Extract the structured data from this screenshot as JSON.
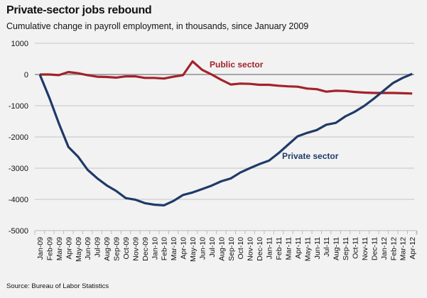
{
  "chart_data": {
    "type": "line",
    "title": "Private-sector jobs rebound",
    "subtitle": "Cumulative change in payroll employment, in thousands, since January 2009",
    "source": "Source: Bureau of Labor Statistics",
    "xlabel": "",
    "ylabel": "",
    "ylim": [
      -5000,
      1000
    ],
    "yticks": [
      1000,
      0,
      -1000,
      -2000,
      -3000,
      -4000,
      -5000
    ],
    "grid": true,
    "categories": [
      "Jan-09",
      "Feb-09",
      "Mar-09",
      "Apr-09",
      "May-09",
      "Jun-09",
      "Jul-09",
      "Aug-09",
      "Sep-09",
      "Oct-09",
      "Nov-09",
      "Dec-09",
      "Jan-10",
      "Feb-10",
      "Mar-10",
      "Apr-10",
      "May-10",
      "Jun-10",
      "Jul-10",
      "Aug-10",
      "Sep-10",
      "Oct-10",
      "Nov-10",
      "Dec-10",
      "Jan-11",
      "Feb-11",
      "Mar-11",
      "Apr-11",
      "May-11",
      "Jun-11",
      "Jul-11",
      "Aug-11",
      "Sep-11",
      "Oct-11",
      "Nov-11",
      "Dec-11",
      "Jan-12",
      "Feb-12",
      "Mar-12",
      "Apr-12"
    ],
    "series": [
      {
        "name": "Public sector",
        "color": "#a3222a",
        "values": [
          0,
          0,
          -20,
          80,
          40,
          -20,
          -70,
          -80,
          -100,
          -60,
          -60,
          -110,
          -110,
          -130,
          -70,
          -20,
          420,
          150,
          0,
          -170,
          -320,
          -290,
          -300,
          -330,
          -330,
          -360,
          -380,
          -390,
          -450,
          -470,
          -550,
          -520,
          -530,
          -560,
          -580,
          -590,
          -590,
          -590,
          -600,
          -610
        ]
      },
      {
        "name": "Private sector",
        "color": "#1f3a68",
        "values": [
          0,
          -740,
          -1570,
          -2320,
          -2630,
          -3050,
          -3320,
          -3550,
          -3730,
          -3960,
          -4010,
          -4120,
          -4170,
          -4190,
          -4050,
          -3860,
          -3780,
          -3670,
          -3560,
          -3420,
          -3330,
          -3140,
          -3000,
          -2870,
          -2760,
          -2520,
          -2250,
          -1980,
          -1870,
          -1780,
          -1610,
          -1550,
          -1340,
          -1190,
          -1000,
          -770,
          -520,
          -270,
          -110,
          20
        ]
      }
    ],
    "annotations": [
      "Public sector",
      "Private sector"
    ]
  }
}
